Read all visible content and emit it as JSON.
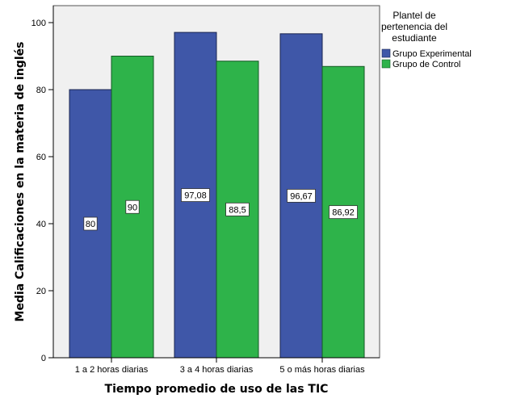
{
  "chart_data": {
    "type": "bar",
    "title": "",
    "xlabel": "Tiempo promedio de uso de las TIC",
    "ylabel": "Media Calificaciones en la materia de inglés",
    "categories": [
      "1 a 2 horas diarias",
      "3 a 4 horas diarias",
      "5 o más horas diarias"
    ],
    "series": [
      {
        "name": "Grupo Experimental",
        "values": [
          80,
          97.08,
          96.67
        ],
        "labels": [
          "80",
          "97,08",
          "96,67"
        ],
        "color": "#3F57A8"
      },
      {
        "name": "Grupo de Control",
        "values": [
          90,
          88.5,
          86.92
        ],
        "labels": [
          "90",
          "88,5",
          "86,92"
        ],
        "color": "#2EB34A"
      }
    ],
    "ylim": [
      0,
      105
    ],
    "yticks": [
      0,
      20,
      40,
      60,
      80,
      100
    ],
    "grid": false,
    "legend": {
      "title": "Plantel de pertenencia del estudiante",
      "title_lines": [
        "Plantel de",
        "pertenencia del",
        "estudiante"
      ],
      "position": "right"
    },
    "plot_background": "#F0F0F0"
  }
}
